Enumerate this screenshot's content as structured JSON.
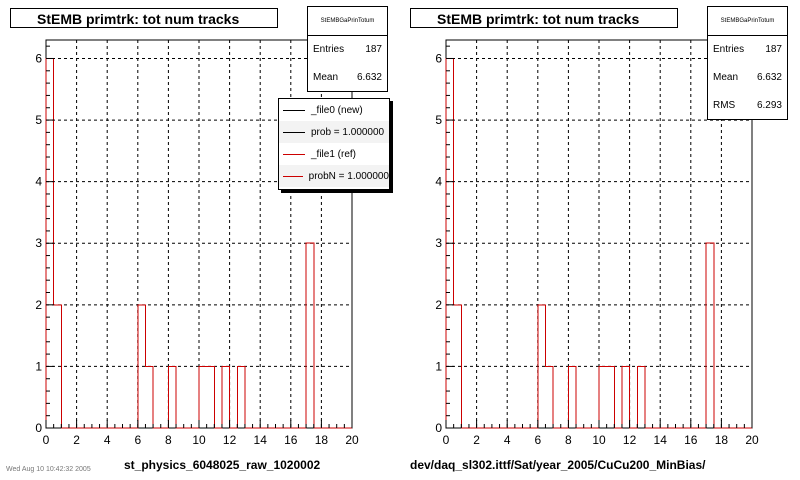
{
  "panels": [
    {
      "title": "StEMB primtrk: tot num tracks",
      "xlabel": "st_physics_6048025_raw_1020002",
      "stats": {
        "name": "StEMBGaPrinTotum",
        "entries_label": "Entries",
        "entries": "187",
        "mean_label": "Mean",
        "mean": "6.632"
      }
    },
    {
      "title": "StEMB primtrk: tot num tracks",
      "xlabel": "dev/daq_sl302.ittf/Sat/year_2005/CuCu200_MinBias/",
      "stats": {
        "name": "StEMBGaPrinTotum",
        "entries_label": "Entries",
        "entries": "187",
        "mean_label": "Mean",
        "mean": "6.632",
        "rms_label": "RMS",
        "rms": "6.293"
      }
    }
  ],
  "legend": [
    {
      "label": "_file0 (new)",
      "color": "#000000"
    },
    {
      "label": "prob = 1.000000",
      "color": "#000000"
    },
    {
      "label": "_file1 (ref)",
      "color": "#cc0000"
    },
    {
      "label": "probN = 1.000000",
      "color": "#cc0000"
    }
  ],
  "footnote": "Wed Aug 10 10:42:32 2005",
  "colors": {
    "new": "#000000",
    "ref": "#cc0000",
    "grid": "#000000"
  },
  "chart_data": [
    {
      "type": "bar",
      "histogram": true,
      "title": "StEMB primtrk: tot num tracks",
      "xlabel": "st_physics_6048025_raw_1020002",
      "ylabel": "",
      "xlim": [
        0,
        20
      ],
      "ylim": [
        0,
        6.3
      ],
      "xticks": [
        0,
        2,
        4,
        6,
        8,
        10,
        12,
        14,
        16,
        18,
        20
      ],
      "yticks": [
        0,
        1,
        2,
        3,
        4,
        5,
        6
      ],
      "grid": true,
      "legend_position": "top-right",
      "bin_width": 0.5,
      "bin_edges_start": 0,
      "series": [
        {
          "name": "_file0 (new)",
          "color": "#000000",
          "values": [
            6,
            2,
            0,
            0,
            0,
            0,
            0,
            0,
            0,
            0,
            0,
            0,
            2,
            1,
            0,
            0,
            1,
            0,
            0,
            0,
            1,
            1,
            0,
            1,
            0,
            1,
            0,
            0,
            0,
            0,
            0,
            0,
            0,
            0,
            3,
            0,
            0,
            0,
            0,
            0
          ]
        },
        {
          "name": "_file1 (ref)",
          "color": "#cc0000",
          "values": [
            6,
            2,
            0,
            0,
            0,
            0,
            0,
            0,
            0,
            0,
            0,
            0,
            2,
            1,
            0,
            0,
            1,
            0,
            0,
            0,
            1,
            1,
            0,
            1,
            0,
            1,
            0,
            0,
            0,
            0,
            0,
            0,
            0,
            0,
            3,
            0,
            0,
            0,
            0,
            0
          ]
        }
      ]
    },
    {
      "type": "bar",
      "histogram": true,
      "title": "StEMB primtrk: tot num tracks",
      "xlabel": "dev/daq_sl302.ittf/Sat/year_2005/CuCu200_MinBias/",
      "ylabel": "",
      "xlim": [
        0,
        20
      ],
      "ylim": [
        0,
        6.3
      ],
      "xticks": [
        0,
        2,
        4,
        6,
        8,
        10,
        12,
        14,
        16,
        18,
        20
      ],
      "yticks": [
        0,
        1,
        2,
        3,
        4,
        5,
        6
      ],
      "grid": true,
      "bin_width": 0.5,
      "bin_edges_start": 0,
      "series": [
        {
          "color": "#cc0000",
          "values": [
            6,
            2,
            0,
            0,
            0,
            0,
            0,
            0,
            0,
            0,
            0,
            0,
            2,
            1,
            0,
            0,
            1,
            0,
            0,
            0,
            1,
            1,
            0,
            1,
            0,
            1,
            0,
            0,
            0,
            0,
            0,
            0,
            0,
            0,
            3,
            0,
            0,
            0,
            0,
            0
          ]
        }
      ]
    }
  ]
}
